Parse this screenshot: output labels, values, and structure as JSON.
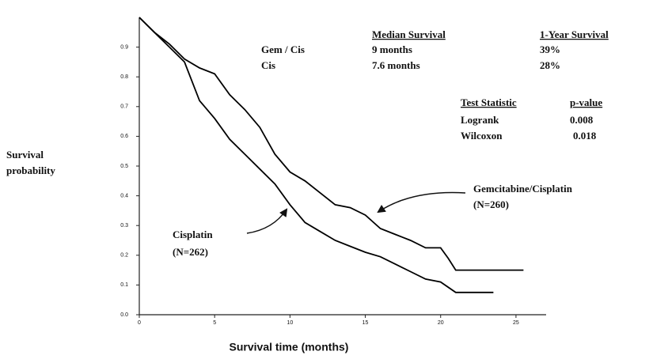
{
  "chart_data": {
    "type": "line",
    "x_label": "Survival time (months)",
    "y_label": "Survival probability",
    "xlim": [
      0,
      27
    ],
    "ylim": [
      0,
      1
    ],
    "xticks": [
      0,
      5,
      10,
      15,
      20,
      25
    ],
    "yticks": [
      {
        "value": 0,
        "label": "0.0"
      },
      0.1,
      0.2,
      0.3,
      0.4,
      0.5,
      0.6,
      0.7,
      0.8,
      0.9
    ],
    "series": [
      {
        "name": "Gemcitabine/Cisplatin",
        "n_label": "(N=260)",
        "color": "#000000",
        "x": [
          0,
          1,
          2,
          3,
          4,
          5,
          6,
          7,
          8,
          9,
          10,
          11,
          12,
          13,
          14,
          15,
          16,
          17,
          18,
          19,
          20,
          20.5,
          21,
          25.5
        ],
        "values": [
          1.0,
          0.95,
          0.91,
          0.86,
          0.83,
          0.81,
          0.74,
          0.69,
          0.63,
          0.54,
          0.48,
          0.45,
          0.41,
          0.37,
          0.36,
          0.335,
          0.29,
          0.27,
          0.25,
          0.225,
          0.225,
          0.19,
          0.15,
          0.15
        ]
      },
      {
        "name": "Cisplatin",
        "n_label": "(N=262)",
        "color": "#000000",
        "x": [
          0,
          1,
          2,
          3,
          4,
          5,
          6,
          7,
          8,
          9,
          10,
          11,
          12,
          13,
          14,
          15,
          16,
          17,
          18,
          19,
          20,
          21,
          23.5
        ],
        "values": [
          1.0,
          0.95,
          0.9,
          0.85,
          0.72,
          0.66,
          0.59,
          0.54,
          0.49,
          0.44,
          0.37,
          0.31,
          0.28,
          0.25,
          0.23,
          0.21,
          0.195,
          0.17,
          0.145,
          0.12,
          0.11,
          0.075,
          0.075
        ]
      }
    ],
    "median_table": {
      "headers": [
        "Median Survival",
        "1-Year Survival"
      ],
      "rows": [
        {
          "label": "Gem / Cis",
          "cells": [
            "9 months",
            "39%"
          ]
        },
        {
          "label": "Cis",
          "cells": [
            "7.6 months",
            "28%"
          ]
        }
      ]
    },
    "test_table": {
      "headers": [
        "Test Statistic",
        "p-value"
      ],
      "rows": [
        [
          "Logrank",
          "0.008"
        ],
        [
          "Wilcoxon",
          "0.018"
        ]
      ]
    }
  }
}
